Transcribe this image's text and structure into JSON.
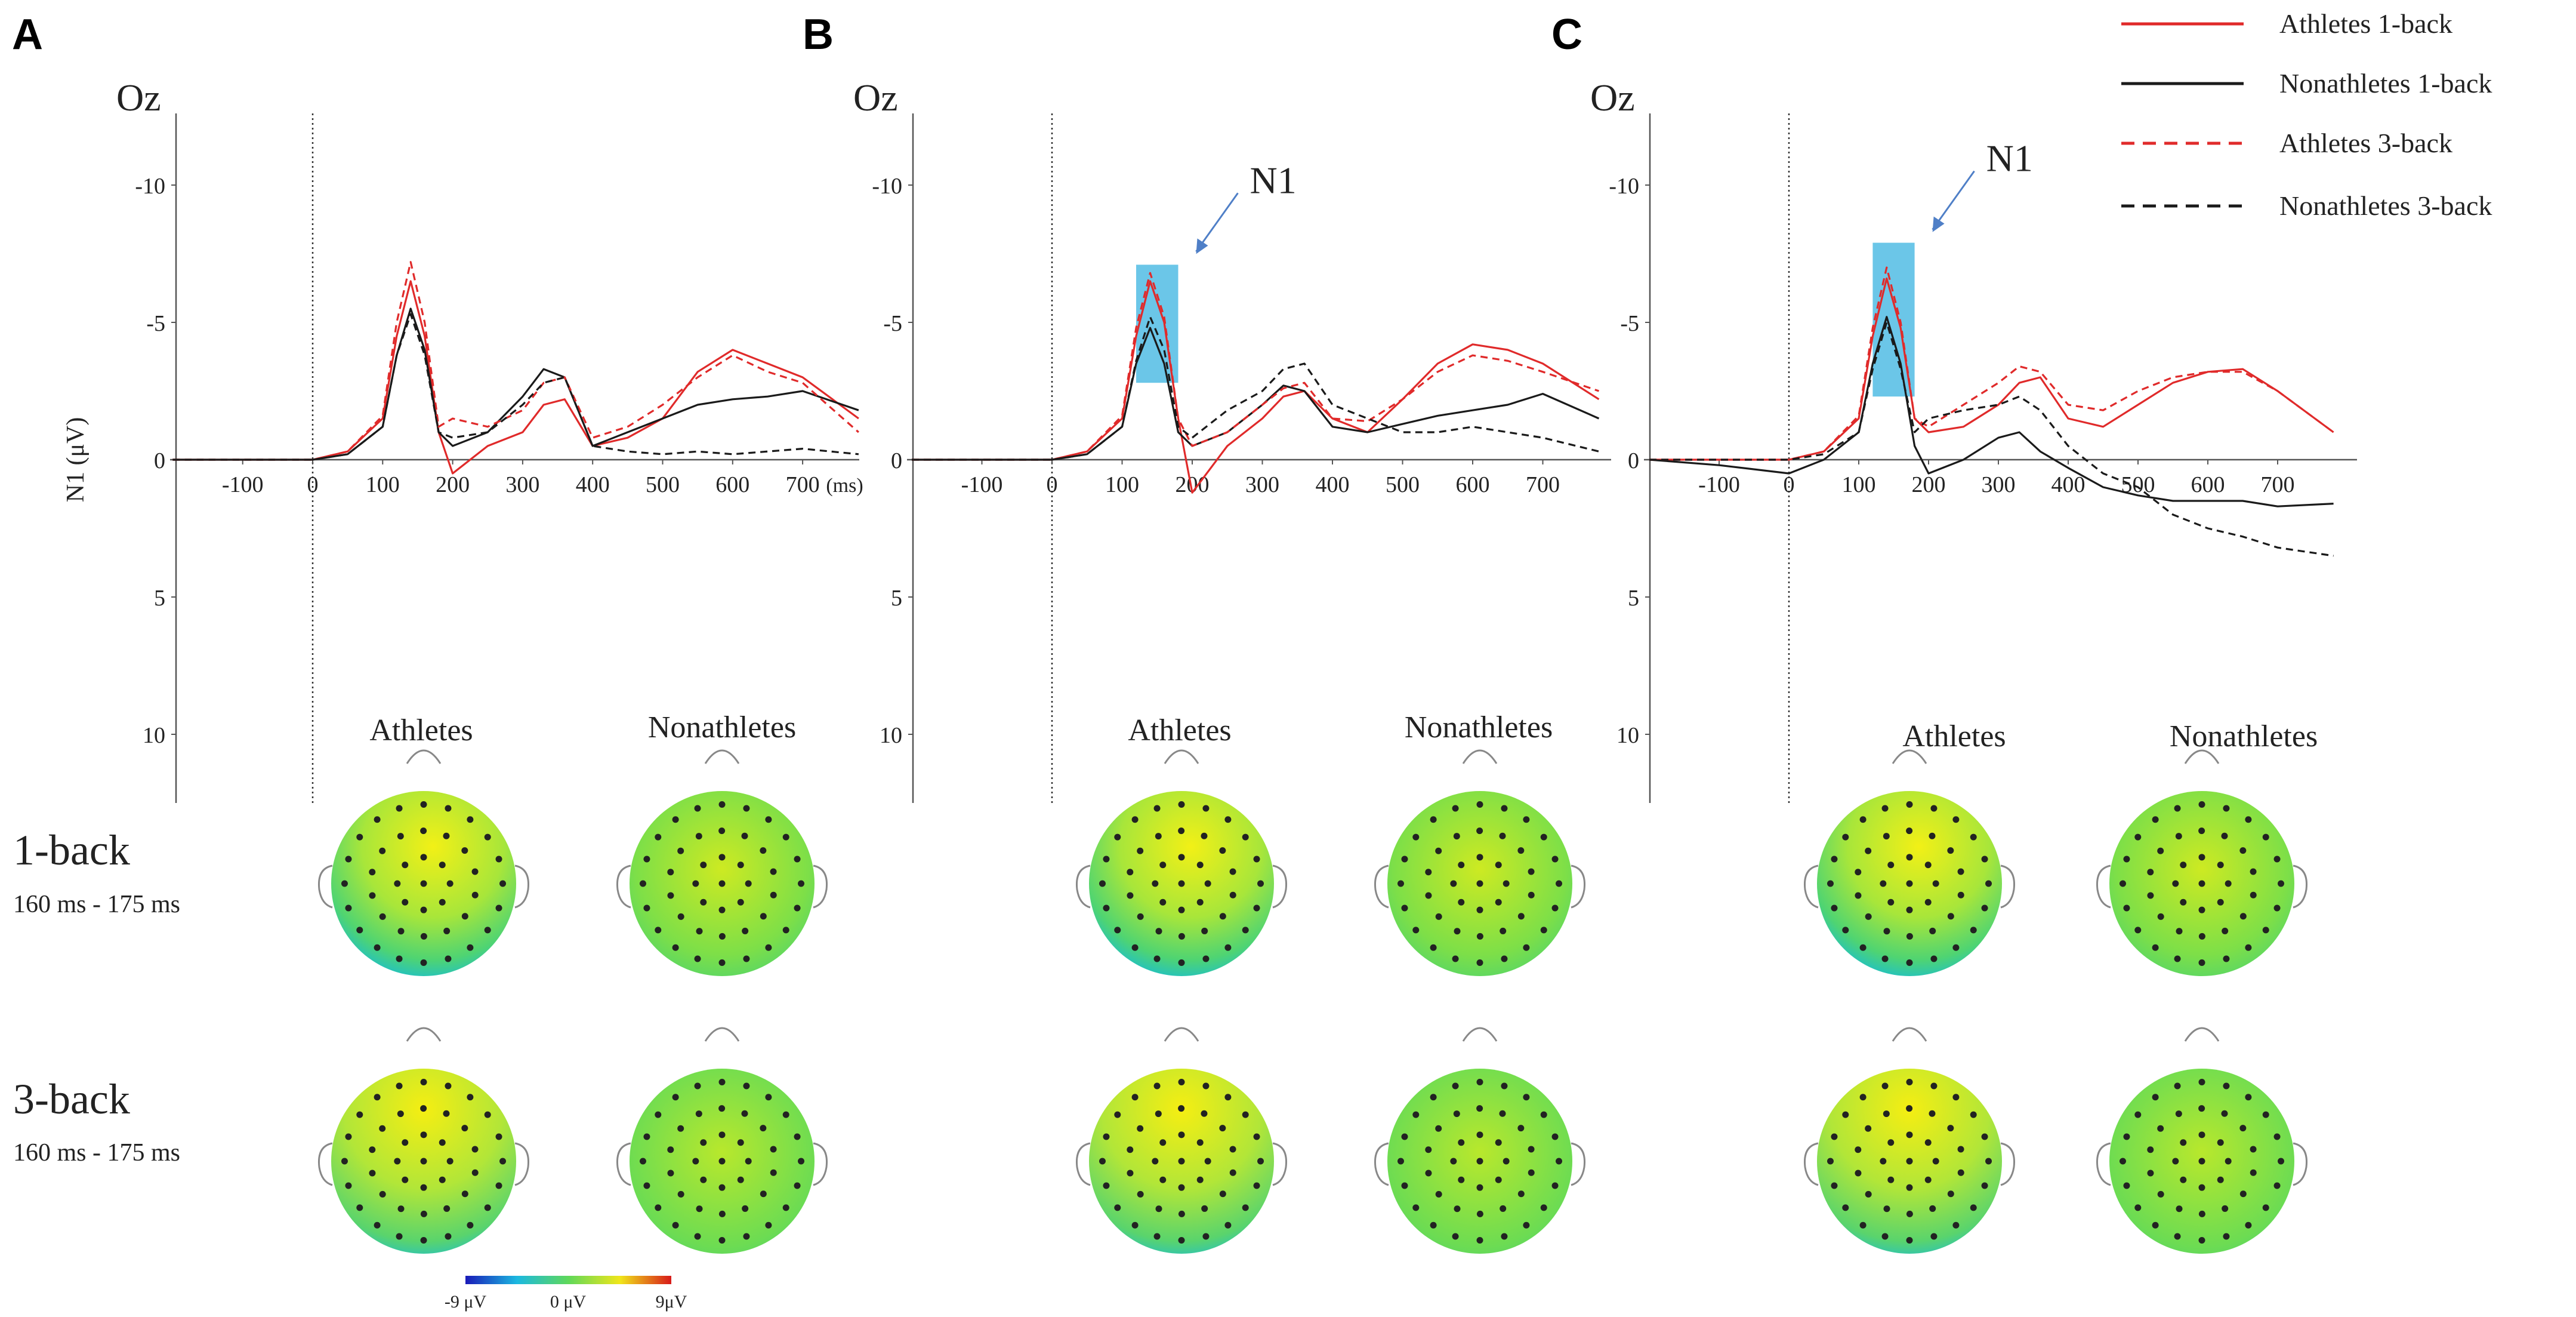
{
  "colors": {
    "athletes": "#e02a2a",
    "nonathletes": "#1a1a1a",
    "highlight": "#5bc0e6",
    "arrow": "#4f7fc7"
  },
  "legend": [
    {
      "label": "Athletes 1-back",
      "color": "#e02a2a",
      "dashed": false
    },
    {
      "label": "Nonathletes 1-back",
      "color": "#1a1a1a",
      "dashed": false
    },
    {
      "label": "Athletes 3-back",
      "color": "#e02a2a",
      "dashed": true
    },
    {
      "label": "Nonathletes 3-back",
      "color": "#1a1a1a",
      "dashed": true
    }
  ],
  "chart_data": [
    {
      "type": "line",
      "panel": "A",
      "electrode": "Oz",
      "ylabel": "N1 (μV)",
      "x_unit": "(ms)",
      "xlim": [
        -200,
        780
      ],
      "ylim": [
        -12,
        12
      ],
      "y_inverted": true,
      "xticks": [
        -100,
        0,
        100,
        200,
        300,
        400,
        500,
        600,
        700
      ],
      "yticks": [
        -10,
        -5,
        0,
        5,
        10
      ],
      "x": [
        -200,
        -100,
        0,
        50,
        100,
        120,
        140,
        160,
        180,
        200,
        250,
        300,
        330,
        360,
        400,
        450,
        500,
        550,
        600,
        650,
        700,
        780
      ],
      "series": [
        {
          "name": "Athletes 1-back",
          "values": [
            0,
            0,
            0,
            -0.3,
            -1.5,
            -4.5,
            -6.5,
            -4.5,
            -1.0,
            0.5,
            -0.5,
            -1.0,
            -2.0,
            -2.2,
            -0.5,
            -0.8,
            -1.5,
            -3.2,
            -4.0,
            -3.5,
            -3.0,
            -1.5
          ]
        },
        {
          "name": "Nonathletes 1-back",
          "values": [
            0,
            0,
            0,
            -0.2,
            -1.2,
            -3.8,
            -5.5,
            -4.0,
            -1.0,
            -0.5,
            -1.0,
            -2.3,
            -3.3,
            -3.0,
            -0.5,
            -1.0,
            -1.5,
            -2.0,
            -2.2,
            -2.3,
            -2.5,
            -1.8
          ]
        },
        {
          "name": "Athletes 3-back",
          "values": [
            0,
            0,
            0,
            -0.3,
            -1.6,
            -5.0,
            -7.2,
            -5.0,
            -1.2,
            -1.5,
            -1.2,
            -1.8,
            -2.8,
            -3.0,
            -0.8,
            -1.2,
            -2.0,
            -3.0,
            -3.8,
            -3.2,
            -2.8,
            -1.0
          ]
        },
        {
          "name": "Nonathletes 3-back",
          "values": [
            0,
            0,
            0,
            -0.2,
            -1.2,
            -3.8,
            -5.3,
            -3.8,
            -1.0,
            -0.8,
            -1.0,
            -2.0,
            -2.8,
            -3.0,
            -0.5,
            -0.3,
            -0.2,
            -0.3,
            -0.2,
            -0.3,
            -0.4,
            -0.2
          ]
        }
      ]
    },
    {
      "type": "line",
      "panel": "B",
      "electrode": "Oz",
      "annotation": "N1",
      "highlight_ms": [
        120,
        180
      ],
      "xlim": [
        -200,
        780
      ],
      "ylim": [
        -12,
        12
      ],
      "y_inverted": true,
      "xticks": [
        -100,
        0,
        100,
        200,
        300,
        400,
        500,
        600,
        700
      ],
      "yticks": [
        -10,
        -5,
        0,
        5,
        10
      ],
      "x": [
        -200,
        -100,
        0,
        50,
        100,
        120,
        140,
        160,
        180,
        200,
        250,
        300,
        330,
        360,
        400,
        450,
        500,
        550,
        600,
        650,
        700,
        780
      ],
      "series": [
        {
          "name": "Athletes 1-back",
          "values": [
            0,
            0,
            0,
            -0.3,
            -1.5,
            -4.5,
            -6.5,
            -5.0,
            -1.5,
            1.2,
            -0.5,
            -1.5,
            -2.3,
            -2.5,
            -1.5,
            -1.0,
            -2.2,
            -3.5,
            -4.2,
            -4.0,
            -3.5,
            -2.2
          ]
        },
        {
          "name": "Nonathletes 1-back",
          "values": [
            0,
            0,
            0,
            -0.2,
            -1.2,
            -3.5,
            -4.8,
            -3.5,
            -1.0,
            -0.5,
            -1.0,
            -2.0,
            -2.7,
            -2.5,
            -1.2,
            -1.0,
            -1.3,
            -1.6,
            -1.8,
            -2.0,
            -2.4,
            -1.5
          ]
        },
        {
          "name": "Athletes 3-back",
          "values": [
            0,
            0,
            0,
            -0.3,
            -1.6,
            -4.8,
            -6.8,
            -5.2,
            -1.5,
            -0.5,
            -1.0,
            -2.0,
            -2.6,
            -2.8,
            -1.5,
            -1.4,
            -2.2,
            -3.2,
            -3.8,
            -3.6,
            -3.2,
            -2.5
          ]
        },
        {
          "name": "Nonathletes 3-back",
          "values": [
            0,
            0,
            0,
            -0.2,
            -1.2,
            -3.6,
            -5.2,
            -4.0,
            -1.2,
            -0.8,
            -1.8,
            -2.5,
            -3.3,
            -3.5,
            -2.0,
            -1.5,
            -1.0,
            -1.0,
            -1.2,
            -1.0,
            -0.8,
            -0.3
          ]
        }
      ]
    },
    {
      "type": "line",
      "panel": "C",
      "electrode": "Oz",
      "annotation": "N1",
      "highlight_ms": [
        120,
        180
      ],
      "xlim": [
        -200,
        780
      ],
      "ylim": [
        -12,
        12
      ],
      "y_inverted": true,
      "xticks": [
        -100,
        0,
        100,
        200,
        300,
        400,
        500,
        600,
        700
      ],
      "yticks": [
        -10,
        -5,
        0,
        5,
        10
      ],
      "x": [
        -200,
        -100,
        0,
        50,
        100,
        120,
        140,
        160,
        180,
        200,
        250,
        300,
        330,
        360,
        400,
        450,
        500,
        550,
        600,
        650,
        700,
        780
      ],
      "series": [
        {
          "name": "Athletes 1-back",
          "values": [
            0,
            0,
            0,
            -0.3,
            -1.5,
            -4.5,
            -6.6,
            -4.8,
            -1.5,
            -1.0,
            -1.2,
            -2.0,
            -2.8,
            -3.0,
            -1.5,
            -1.2,
            -2.0,
            -2.8,
            -3.2,
            -3.3,
            -2.5,
            -1.0
          ]
        },
        {
          "name": "Nonathletes 1-back",
          "values": [
            0,
            0.2,
            0.5,
            0,
            -1.0,
            -3.5,
            -5.2,
            -3.5,
            -0.5,
            0.5,
            0,
            -0.8,
            -1.0,
            -0.3,
            0.3,
            1.0,
            1.3,
            1.5,
            1.5,
            1.5,
            1.7,
            1.6
          ]
        },
        {
          "name": "Athletes 3-back",
          "values": [
            0,
            0,
            0,
            -0.3,
            -1.6,
            -4.8,
            -7.0,
            -5.0,
            -1.5,
            -1.2,
            -2.0,
            -2.8,
            -3.4,
            -3.2,
            -2.0,
            -1.8,
            -2.5,
            -3.0,
            -3.2,
            -3.2,
            -2.5,
            -1.0
          ]
        },
        {
          "name": "Nonathletes 3-back",
          "values": [
            0,
            0,
            0,
            -0.2,
            -1.0,
            -3.3,
            -5.0,
            -3.3,
            -1.0,
            -1.5,
            -1.8,
            -2.0,
            -2.3,
            -1.8,
            -0.5,
            0.5,
            1.0,
            2.0,
            2.5,
            2.8,
            3.2,
            3.5
          ]
        }
      ]
    }
  ],
  "topomaps": {
    "group_labels": [
      "Athletes",
      "Nonathletes"
    ],
    "conditions": [
      {
        "label": "1-back",
        "time": "160 ms - 175 ms"
      },
      {
        "label": "3-back",
        "time": "160 ms - 175 ms"
      }
    ]
  },
  "colorbar": {
    "min_label": "-9 μV",
    "mid_label": "0 μV",
    "max_label": "9μV"
  }
}
